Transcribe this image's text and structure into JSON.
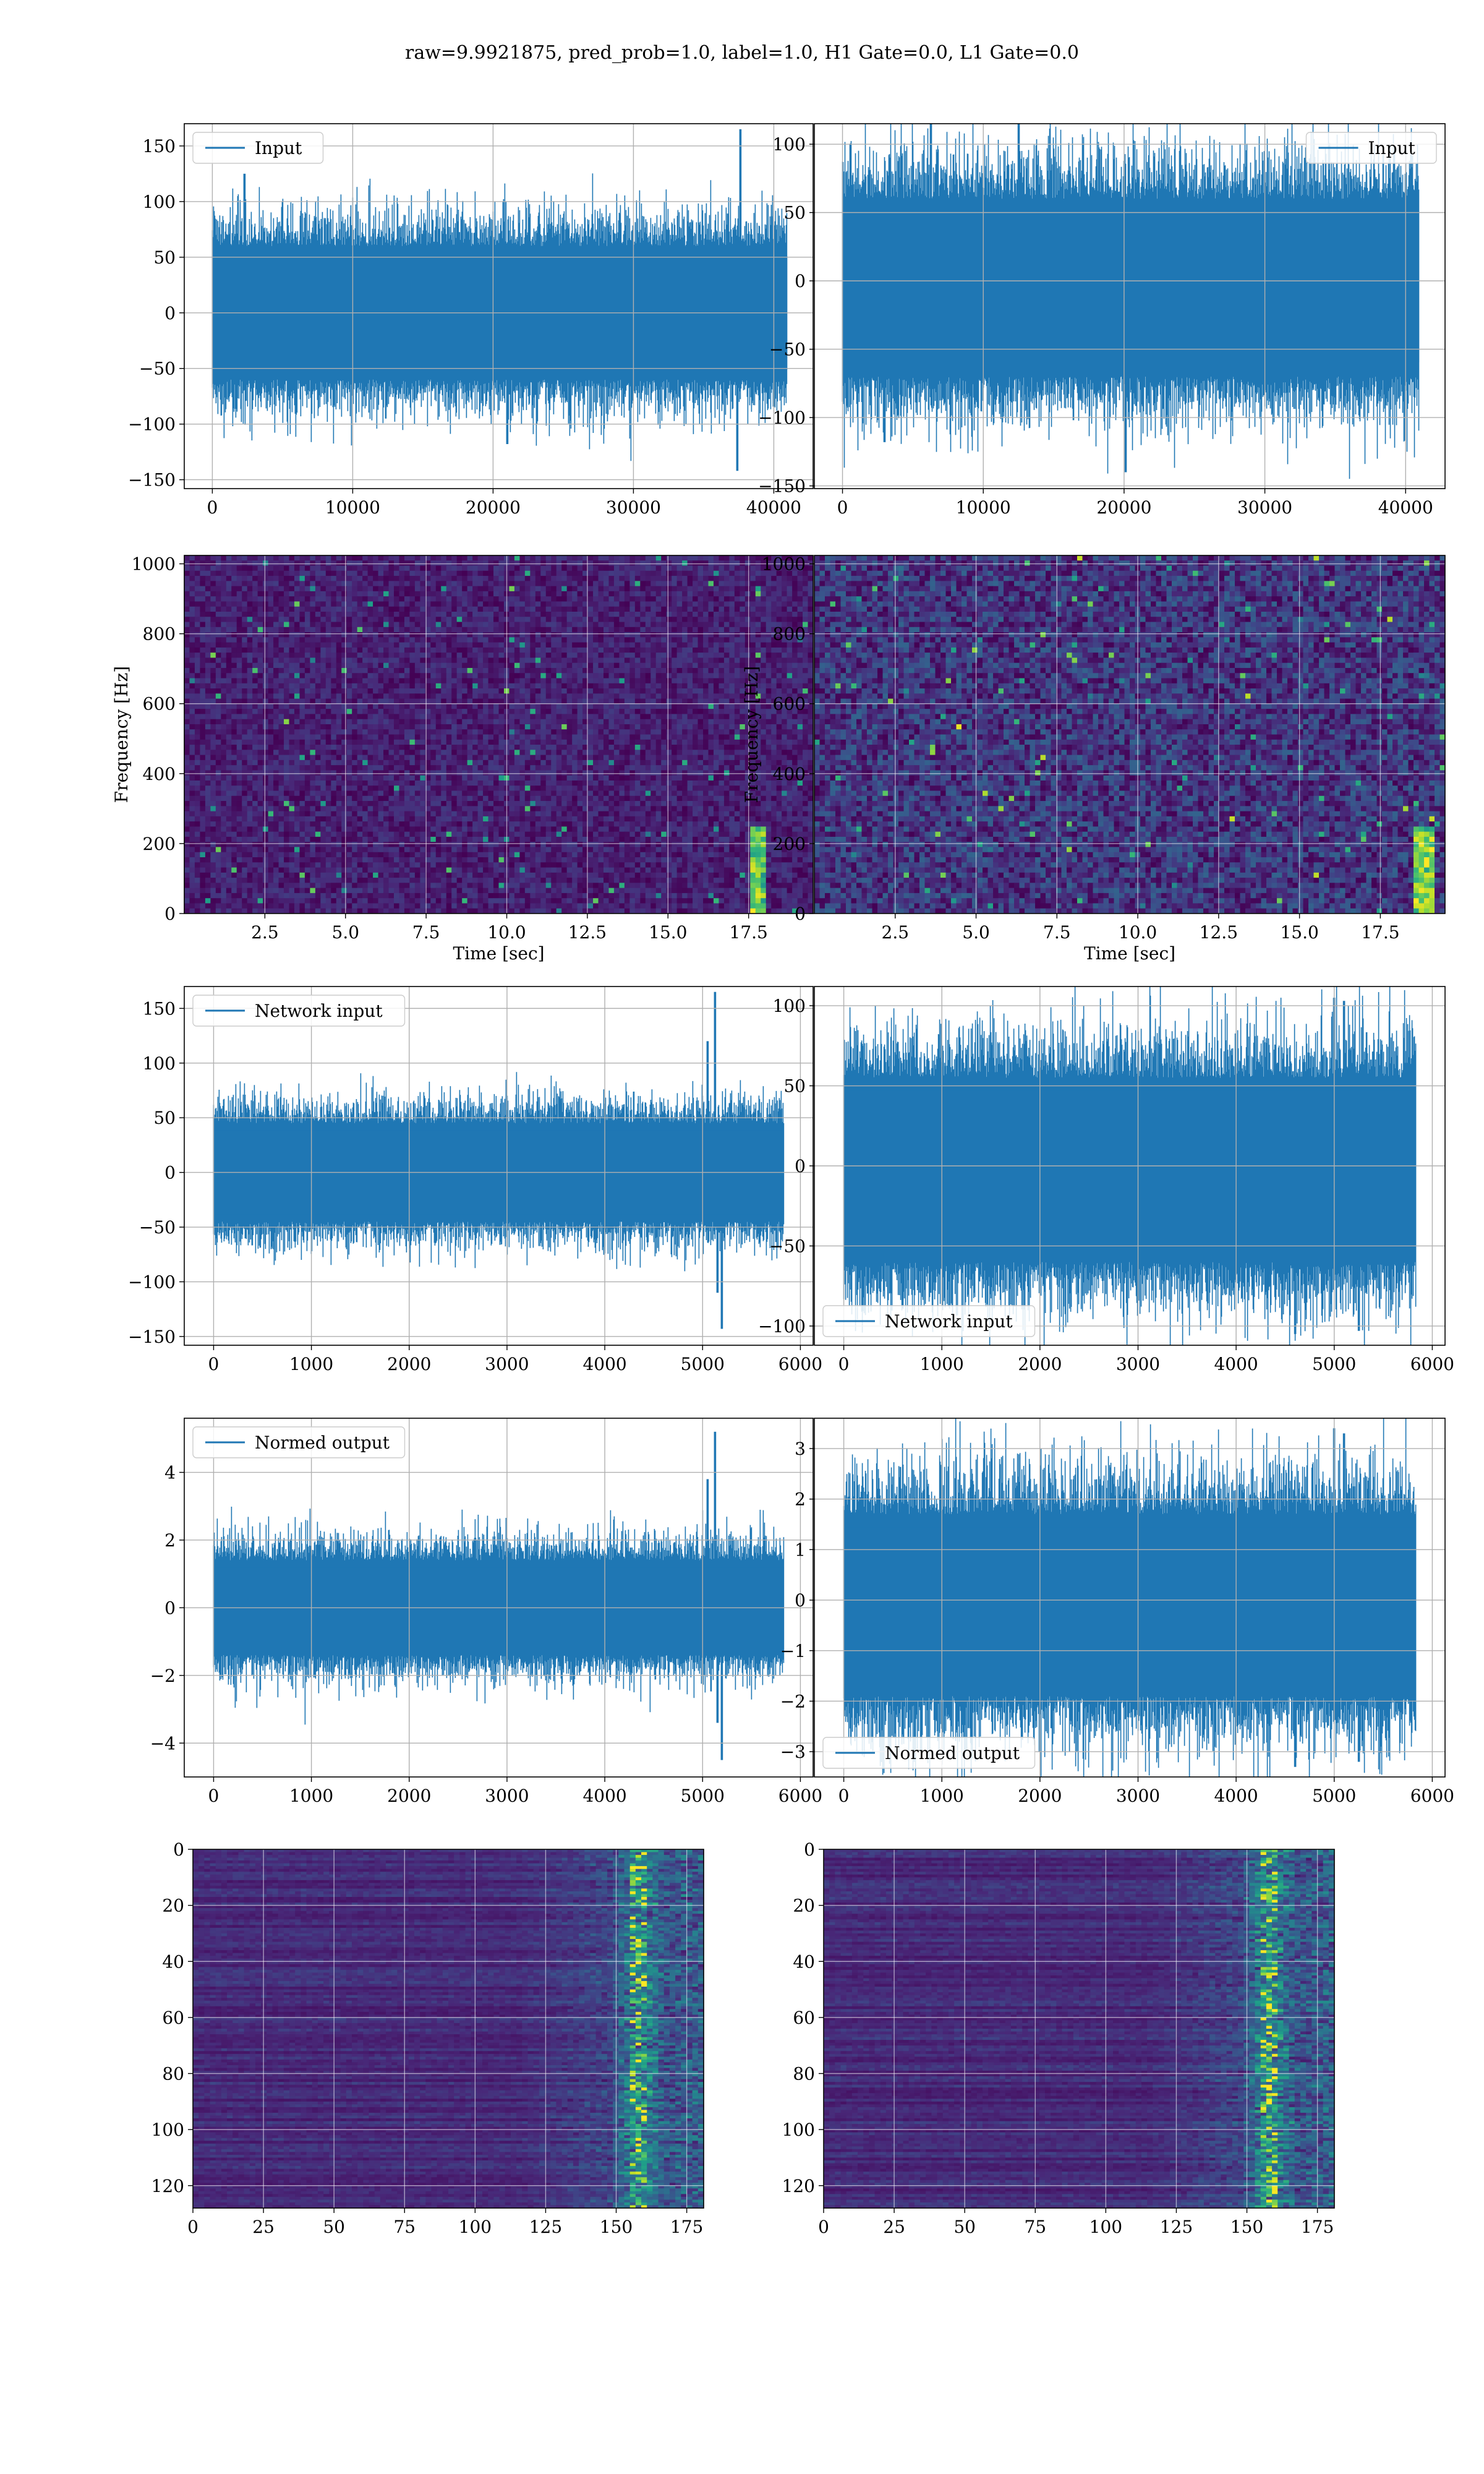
{
  "title": "raw=9.9921875, pred_prob=1.0, label=1.0, H1 Gate=0.0, L1 Gate=0.0",
  "colors": {
    "line": "#1f77b4",
    "grid": "#b0b0b0",
    "viridis": [
      "#440154",
      "#482878",
      "#3e4989",
      "#31688e",
      "#26828e",
      "#1f9e89",
      "#35b779",
      "#6ece58",
      "#b5de2b",
      "#fde725"
    ]
  },
  "chart_data": [
    {
      "id": "h1-input",
      "type": "line",
      "legend": "Input",
      "legend_position": "upper left",
      "xlim": [
        -2000,
        42800
      ],
      "ylim": [
        -158,
        170
      ],
      "xticks": [
        0,
        10000,
        20000,
        30000,
        40000
      ],
      "yticks": [
        -150,
        -100,
        -50,
        0,
        50,
        100,
        150
      ],
      "series": [
        {
          "n": 40960,
          "noise_std": 22,
          "band": [
            -60,
            60
          ],
          "spikes": [
            [
              37600,
              165
            ],
            [
              37400,
              -142
            ],
            [
              2300,
              125
            ],
            [
              21000,
              -118
            ]
          ]
        }
      ]
    },
    {
      "id": "l1-input",
      "type": "line",
      "legend": "Input",
      "legend_position": "upper right",
      "xlim": [
        -2000,
        42800
      ],
      "ylim": [
        -152,
        115
      ],
      "xticks": [
        0,
        10000,
        20000,
        30000,
        40000
      ],
      "yticks": [
        -150,
        -100,
        -50,
        0,
        50,
        100
      ],
      "series": [
        {
          "n": 40960,
          "noise_std": 25,
          "band": [
            -70,
            60
          ],
          "spikes": [
            [
              12500,
              125
            ],
            [
              20100,
              -140
            ],
            [
              6300,
              120
            ],
            [
              3000,
              -118
            ]
          ]
        }
      ]
    },
    {
      "id": "h1-spectrogram",
      "type": "heatmap",
      "xlabel": "Time [sec]",
      "ylabel": "Frequency [Hz]",
      "xlim": [
        0,
        19.5
      ],
      "ylim": [
        0,
        1024
      ],
      "xticks": [
        2.5,
        5.0,
        7.5,
        10.0,
        12.5,
        15.0,
        17.5
      ],
      "yticks": [
        0,
        200,
        400,
        600,
        800,
        1000
      ],
      "intensity": 0.18,
      "chirp_time": 17.8
    },
    {
      "id": "l1-spectrogram",
      "type": "heatmap",
      "xlabel": "Time [sec]",
      "ylabel": "Frequency [Hz]",
      "xlim": [
        0,
        19.5
      ],
      "ylim": [
        0,
        1024
      ],
      "xticks": [
        2.5,
        5.0,
        7.5,
        10.0,
        12.5,
        15.0,
        17.5
      ],
      "yticks": [
        0,
        200,
        400,
        600,
        800,
        1000
      ],
      "intensity": 0.32,
      "chirp_time": 18.9
    },
    {
      "id": "h1-network-input",
      "type": "line",
      "legend": "Network input",
      "legend_position": "upper left",
      "xlim": [
        -300,
        6130
      ],
      "ylim": [
        -158,
        170
      ],
      "xticks": [
        0,
        1000,
        2000,
        3000,
        4000,
        5000,
        6000
      ],
      "yticks": [
        -150,
        -100,
        -50,
        0,
        50,
        100,
        150
      ],
      "series": [
        {
          "n": 5832,
          "noise_std": 17,
          "band": [
            -45,
            45
          ],
          "spikes": [
            [
              5130,
              165
            ],
            [
              5200,
              -143
            ],
            [
              5050,
              120
            ],
            [
              5150,
              -110
            ]
          ]
        }
      ]
    },
    {
      "id": "l1-network-input",
      "type": "line",
      "legend": "Network input",
      "legend_position": "lower left",
      "xlim": [
        -300,
        6130
      ],
      "ylim": [
        -112,
        112
      ],
      "xticks": [
        0,
        1000,
        2000,
        3000,
        4000,
        5000,
        6000
      ],
      "yticks": [
        -100,
        -50,
        0,
        50,
        100
      ],
      "series": [
        {
          "n": 5832,
          "noise_std": 22,
          "band": [
            -60,
            55
          ],
          "spikes": [
            [
              5000,
              105
            ],
            [
              4600,
              -105
            ],
            [
              5100,
              103
            ],
            [
              5250,
              -103
            ]
          ]
        }
      ]
    },
    {
      "id": "h1-normed-output",
      "type": "line",
      "legend": "Normed output",
      "legend_position": "upper left",
      "xlim": [
        -300,
        6130
      ],
      "ylim": [
        -5,
        5.6
      ],
      "xticks": [
        0,
        1000,
        2000,
        3000,
        4000,
        5000,
        6000
      ],
      "yticks": [
        -4,
        -2,
        0,
        2,
        4
      ],
      "series": [
        {
          "n": 5832,
          "noise_std": 0.55,
          "band": [
            -1.4,
            1.4
          ],
          "spikes": [
            [
              5130,
              5.2
            ],
            [
              5200,
              -4.5
            ],
            [
              5050,
              3.8
            ],
            [
              5150,
              -3.4
            ]
          ]
        }
      ]
    },
    {
      "id": "l1-normed-output",
      "type": "line",
      "legend": "Normed output",
      "legend_position": "lower left",
      "xlim": [
        -300,
        6130
      ],
      "ylim": [
        -3.5,
        3.6
      ],
      "xticks": [
        0,
        1000,
        2000,
        3000,
        4000,
        5000,
        6000
      ],
      "yticks": [
        -3,
        -2,
        -1,
        0,
        1,
        2,
        3
      ],
      "series": [
        {
          "n": 5832,
          "noise_std": 0.7,
          "band": [
            -1.9,
            1.7
          ],
          "spikes": [
            [
              5000,
              3.4
            ],
            [
              4600,
              -3.3
            ],
            [
              5100,
              3.3
            ],
            [
              5250,
              -3.2
            ]
          ]
        }
      ]
    },
    {
      "id": "h1-feature-map",
      "type": "heatmap",
      "xlim": [
        0,
        181
      ],
      "ylim": [
        128,
        0
      ],
      "xticks": [
        0,
        25,
        50,
        75,
        100,
        125,
        150,
        175
      ],
      "yticks": [
        0,
        20,
        40,
        60,
        80,
        100,
        120
      ],
      "rows": 128,
      "cols": 181,
      "hot_column": 158
    },
    {
      "id": "l1-feature-map",
      "type": "heatmap",
      "xlim": [
        0,
        181
      ],
      "ylim": [
        128,
        0
      ],
      "xticks": [
        0,
        25,
        50,
        75,
        100,
        125,
        150,
        175
      ],
      "yticks": [
        0,
        20,
        40,
        60,
        80,
        100,
        120
      ],
      "rows": 128,
      "cols": 181,
      "hot_column": 158
    }
  ]
}
